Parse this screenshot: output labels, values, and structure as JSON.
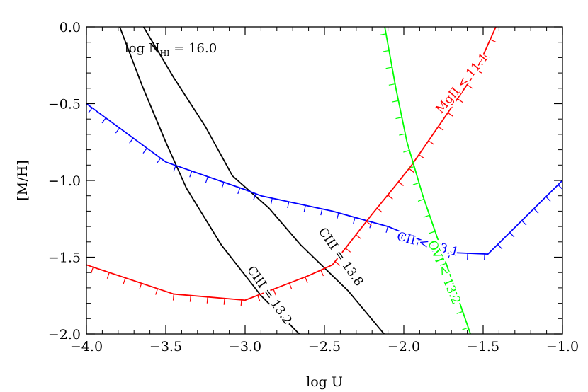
{
  "chart_data": {
    "type": "line",
    "xlabel": "log U",
    "ylabel": "[M/H]",
    "xlim": [
      -4.0,
      -1.0
    ],
    "ylim": [
      -2.0,
      0.0
    ],
    "x_ticks": [
      "-4.0",
      "-3.5",
      "-3.0",
      "-2.5",
      "-2.0",
      "-1.5",
      "-1.0"
    ],
    "y_ticks": [
      "0.0",
      "-0.5",
      "-1.0",
      "-1.5",
      "-2.0"
    ],
    "header_label": {
      "prefix": "log N",
      "sub": "HI",
      "suffix": " = 16.0"
    },
    "colors": {
      "black": "#000000",
      "blue": "#0000ff",
      "red": "#ff0000",
      "green": "#00ff00"
    },
    "series": [
      {
        "id": "ciii-13-2",
        "color": "#000000",
        "hatched": false,
        "label": "CIII = 13.2",
        "label_x": -2.85,
        "label_y": -1.75,
        "label_angle": 55,
        "points": [
          [
            -3.79,
            0.0
          ],
          [
            -3.65,
            -0.38
          ],
          [
            -3.5,
            -0.75
          ],
          [
            -3.37,
            -1.05
          ],
          [
            -3.15,
            -1.42
          ],
          [
            -2.9,
            -1.75
          ],
          [
            -2.63,
            -2.03
          ]
        ]
      },
      {
        "id": "ciii-13-8",
        "color": "#000000",
        "hatched": false,
        "label": "CIII = 13.8",
        "label_x": -2.4,
        "label_y": -1.5,
        "label_angle": 55,
        "points": [
          [
            -3.64,
            0.0
          ],
          [
            -3.45,
            -0.33
          ],
          [
            -3.25,
            -0.65
          ],
          [
            -3.08,
            -0.97
          ],
          [
            -2.85,
            -1.18
          ],
          [
            -2.65,
            -1.42
          ],
          [
            -2.35,
            -1.72
          ],
          [
            -2.1,
            -2.03
          ]
        ]
      },
      {
        "id": "cii-13-1",
        "color": "#0000ff",
        "hatched": true,
        "label": "CII < 13.1",
        "label_x": -1.85,
        "label_y": -1.42,
        "label_angle": 15,
        "points": [
          [
            -4.0,
            -0.5
          ],
          [
            -3.5,
            -0.88
          ],
          [
            -3.0,
            -1.06
          ],
          [
            -2.9,
            -1.1
          ],
          [
            -2.45,
            -1.2
          ],
          [
            -2.1,
            -1.3
          ],
          [
            -1.7,
            -1.47
          ],
          [
            -1.47,
            -1.48
          ],
          [
            -1.0,
            -1.0
          ]
        ]
      },
      {
        "id": "mgii-11-1",
        "color": "#ff0000",
        "hatched": true,
        "label": "MgII < 11.1",
        "label_x": -1.63,
        "label_y": -0.37,
        "label_angle": -50,
        "points": [
          [
            -4.0,
            -1.55
          ],
          [
            -3.45,
            -1.74
          ],
          [
            -3.0,
            -1.78
          ],
          [
            -2.6,
            -1.62
          ],
          [
            -2.45,
            -1.55
          ],
          [
            -2.2,
            -1.22
          ],
          [
            -2.05,
            -1.03
          ],
          [
            -1.95,
            -0.9
          ],
          [
            -1.75,
            -0.6
          ],
          [
            -1.55,
            -0.3
          ],
          [
            -1.42,
            0.0
          ]
        ]
      },
      {
        "id": "ovi-13-2",
        "color": "#00ff00",
        "hatched": true,
        "label": "OVI < 13.2",
        "label_x": -1.75,
        "label_y": -1.6,
        "label_angle": 68,
        "points": [
          [
            -2.12,
            0.0
          ],
          [
            -2.05,
            -0.4
          ],
          [
            -1.98,
            -0.75
          ],
          [
            -1.88,
            -1.1
          ],
          [
            -1.78,
            -1.4
          ],
          [
            -1.68,
            -1.7
          ],
          [
            -1.57,
            -2.03
          ]
        ]
      }
    ]
  }
}
